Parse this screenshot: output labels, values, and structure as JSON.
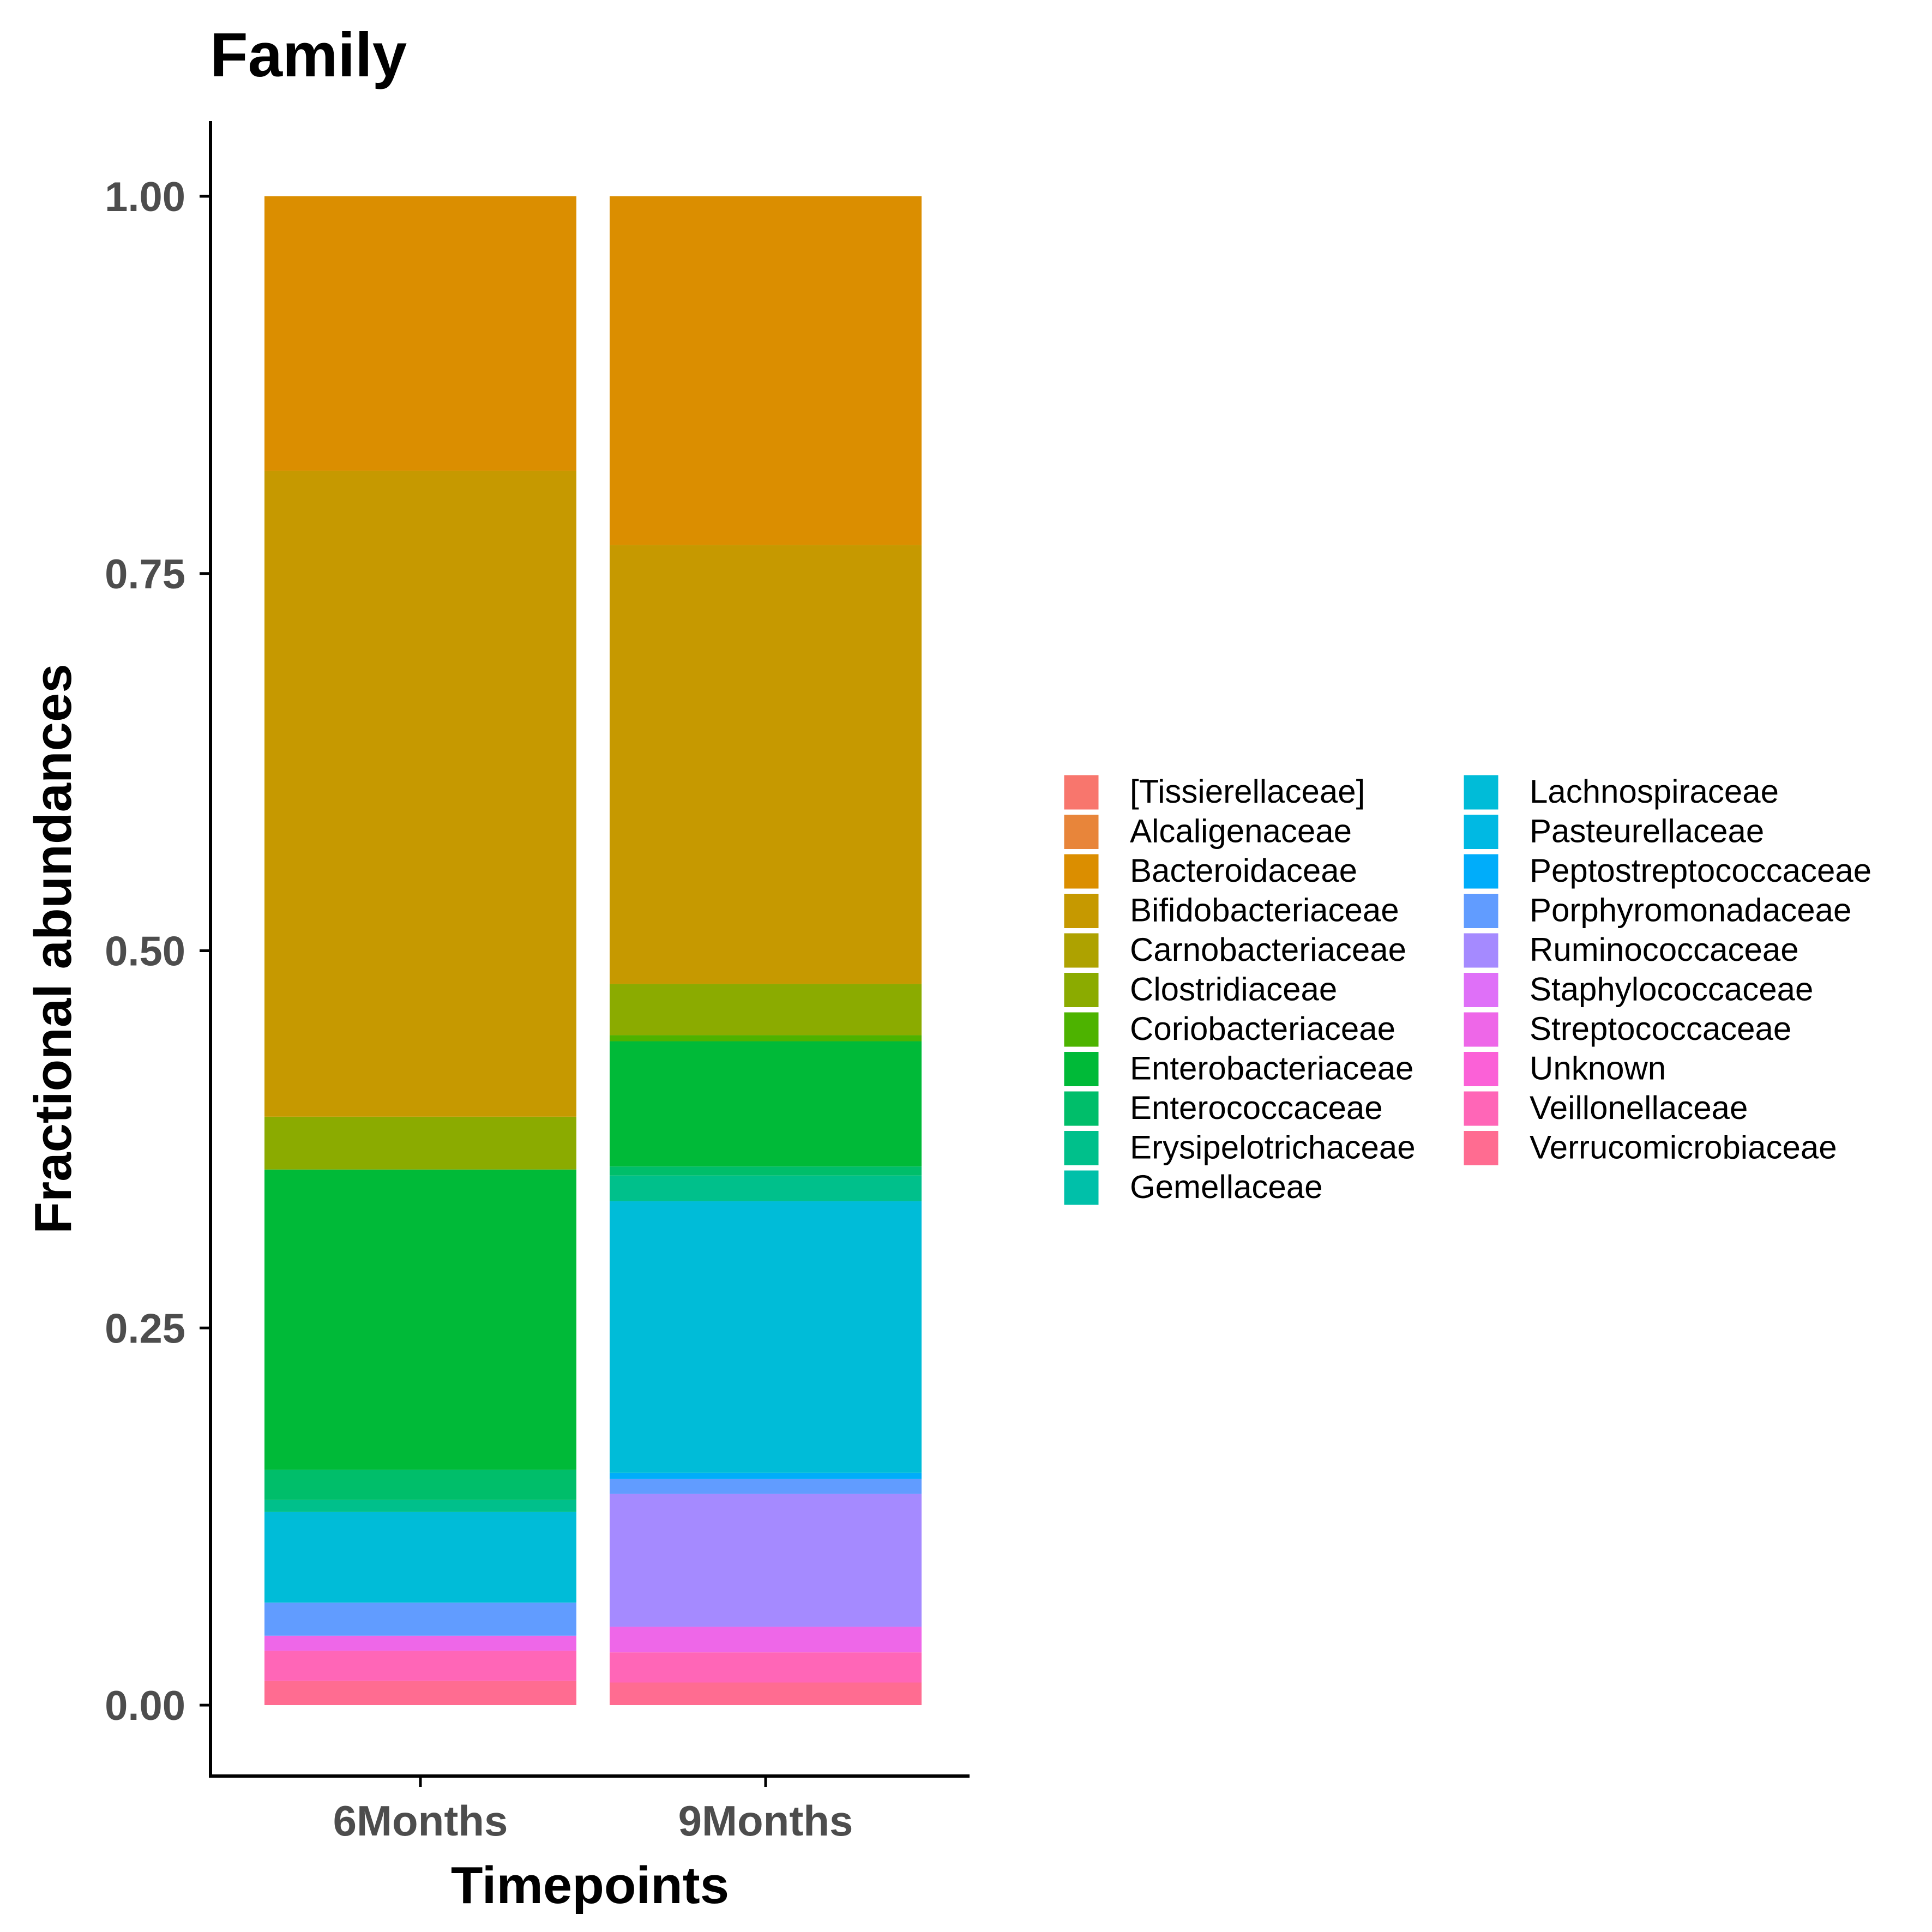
{
  "chart_data": {
    "type": "bar",
    "stacked": true,
    "title": "Family",
    "xlabel": "Timepoints",
    "ylabel": "Fractional abundances",
    "ylim": [
      -0.05,
      1.05
    ],
    "yticks": [
      "0.00",
      "0.25",
      "0.50",
      "0.75",
      "1.00"
    ],
    "categories": [
      "6Months",
      "9Months"
    ],
    "grid": false,
    "legend_position": "right",
    "series": [
      {
        "name": "[Tissierellaceae]",
        "color": "#F8766D",
        "values": [
          0,
          0
        ]
      },
      {
        "name": "Alcaligenaceae",
        "color": "#E8853A",
        "values": [
          0,
          0
        ]
      },
      {
        "name": "Bacteroidaceae",
        "color": "#DB8E00",
        "values": [
          0.182,
          0.231
        ]
      },
      {
        "name": "Bifidobacteriaceae",
        "color": "#C69900",
        "values": [
          0.428,
          0.291
        ]
      },
      {
        "name": "Carnobacteriaceae",
        "color": "#AEA200",
        "values": [
          0,
          0
        ]
      },
      {
        "name": "Clostridiaceae",
        "color": "#8BAB00",
        "values": [
          0.035,
          0.034
        ]
      },
      {
        "name": "Coriobacteriaceae",
        "color": "#4DB300",
        "values": [
          0,
          0.004
        ]
      },
      {
        "name": "Enterobacteriaceae",
        "color": "#00BA38",
        "values": [
          0.199,
          0.083
        ]
      },
      {
        "name": "Enterococcaceae",
        "color": "#00BE6A",
        "values": [
          0.02,
          0.006
        ]
      },
      {
        "name": "Erysipelotrichaceae",
        "color": "#00C08B",
        "values": [
          0.008,
          0.017
        ]
      },
      {
        "name": "Gemellaceae",
        "color": "#00C0A9",
        "values": [
          0,
          0
        ]
      },
      {
        "name": "Lachnospiraceae",
        "color": "#00BCD8",
        "values": [
          0.06,
          0.18
        ]
      },
      {
        "name": "Pasteurellaceae",
        "color": "#00B9E3",
        "values": [
          0,
          0
        ]
      },
      {
        "name": "Peptostreptococcaceae",
        "color": "#00ADFA",
        "values": [
          0,
          0.004
        ]
      },
      {
        "name": "Porphyromonadaceae",
        "color": "#619CFF",
        "values": [
          0.022,
          0.01
        ]
      },
      {
        "name": "Ruminococcaceae",
        "color": "#A58AFF",
        "values": [
          0,
          0.088
        ]
      },
      {
        "name": "Staphylococcaceae",
        "color": "#DF70F8",
        "values": [
          0,
          0
        ]
      },
      {
        "name": "Streptococcaceae",
        "color": "#EE67E8",
        "values": [
          0.01,
          0.017
        ]
      },
      {
        "name": "Unknown",
        "color": "#FB61D7",
        "values": [
          0,
          0
        ]
      },
      {
        "name": "Veillonellaceae",
        "color": "#FF66B7",
        "values": [
          0.02,
          0.02
        ]
      },
      {
        "name": "Verrucomicrobiaceae",
        "color": "#FF6C91",
        "values": [
          0.016,
          0.015
        ]
      }
    ]
  }
}
